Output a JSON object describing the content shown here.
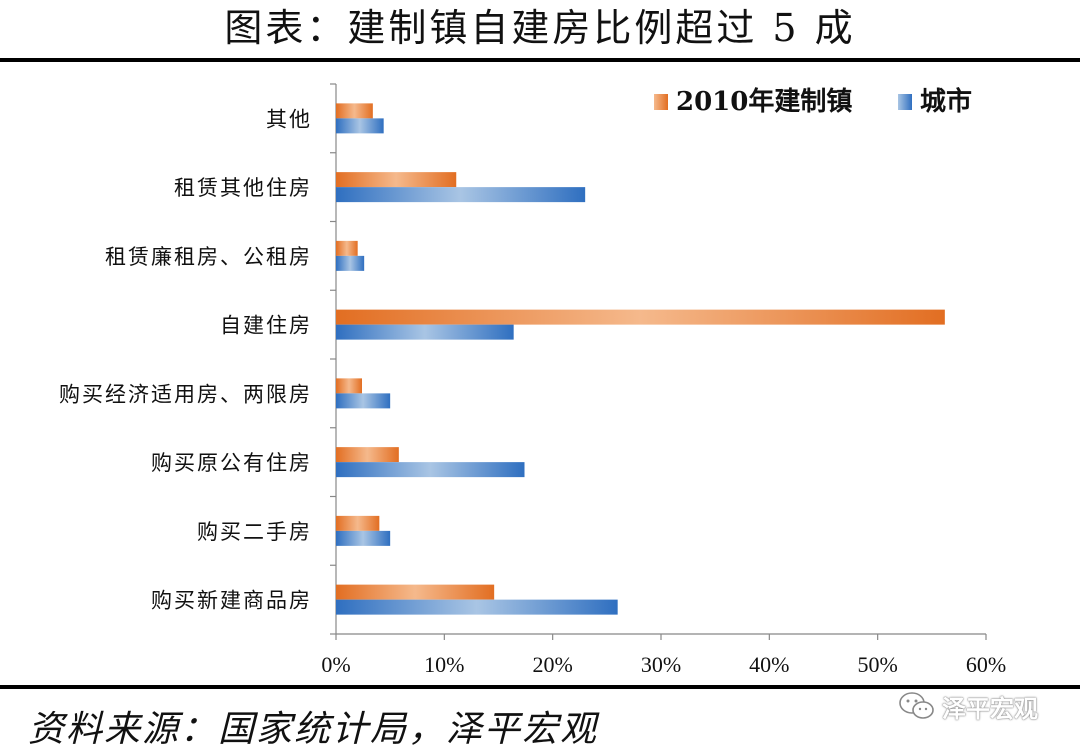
{
  "header": {
    "title": "图表：建制镇自建房比例超过 5 成"
  },
  "footer": {
    "source": "资料来源：国家统计局，泽平宏观",
    "watermark": "泽平宏观"
  },
  "chart_data": {
    "type": "bar",
    "orientation": "horizontal",
    "title": "",
    "xlabel": "",
    "ylabel": "",
    "categories": [
      "其他",
      "租赁其他住房",
      "租赁廉租房、公租房",
      "自建住房",
      "购买经济适用房、两限房",
      "购买原公有住房",
      "购买二手房",
      "购买新建商品房"
    ],
    "series": [
      {
        "name": "2010年建制镇",
        "color": "#E8833A",
        "values": [
          3.4,
          11.1,
          2.0,
          56.2,
          2.4,
          5.8,
          4.0,
          14.6
        ]
      },
      {
        "name": "城市",
        "color": "#3C7FC4",
        "values": [
          4.4,
          23.0,
          2.6,
          16.4,
          5.0,
          17.4,
          5.0,
          26.0
        ]
      }
    ],
    "xlim": [
      0,
      60
    ],
    "x_ticks": [
      "0%",
      "10%",
      "20%",
      "30%",
      "40%",
      "50%",
      "60%"
    ],
    "grid": false,
    "legend_position": "top-right"
  }
}
